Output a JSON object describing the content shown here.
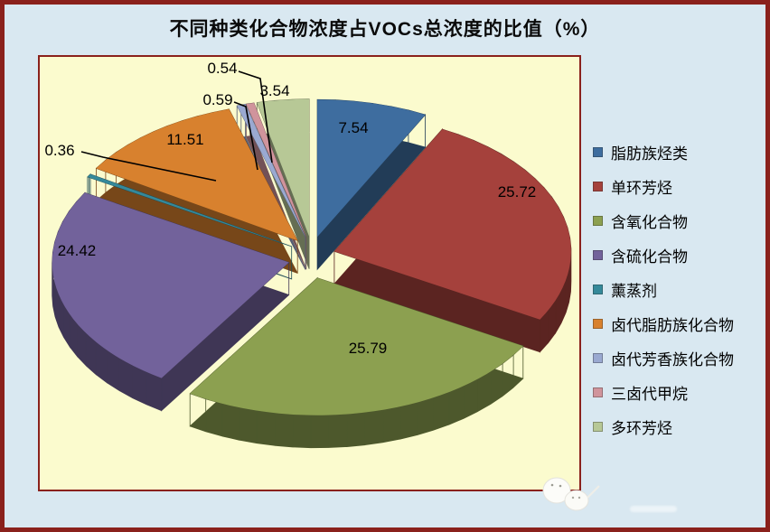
{
  "title": "不同种类化合物浓度占VOCs总浓度的比值（%）",
  "palette": {
    "page_background": "#D9E8F1",
    "frame_border": "#8A211C",
    "plot_background": "#FBFBCE",
    "plot_border": "#8A211C",
    "label_text": "#000000"
  },
  "chart_data": {
    "type": "pie",
    "projection": "3d",
    "exploded": true,
    "title": "不同种类化合物浓度占VOCs总浓度的比值（%）",
    "unit": "%",
    "start_angle_deg": 0,
    "direction": "clockwise",
    "legend_position": "right",
    "labels_shown": true,
    "categories": [
      "脂肪族烃类",
      "单环芳烃",
      "含氧化合物",
      "含硫化合物",
      "薰蒸剂",
      "卤代脂肪族化合物",
      "卤代芳香族化合物",
      "三卤代甲烷",
      "多环芳烃"
    ],
    "values": [
      7.54,
      25.72,
      25.79,
      24.42,
      0.36,
      11.51,
      0.59,
      0.54,
      3.54
    ],
    "colors": [
      "#3E6D9F",
      "#A5413C",
      "#8CA050",
      "#72629B",
      "#35899A",
      "#D8812E",
      "#9AA9D1",
      "#D0949C",
      "#B7C896"
    ]
  }
}
